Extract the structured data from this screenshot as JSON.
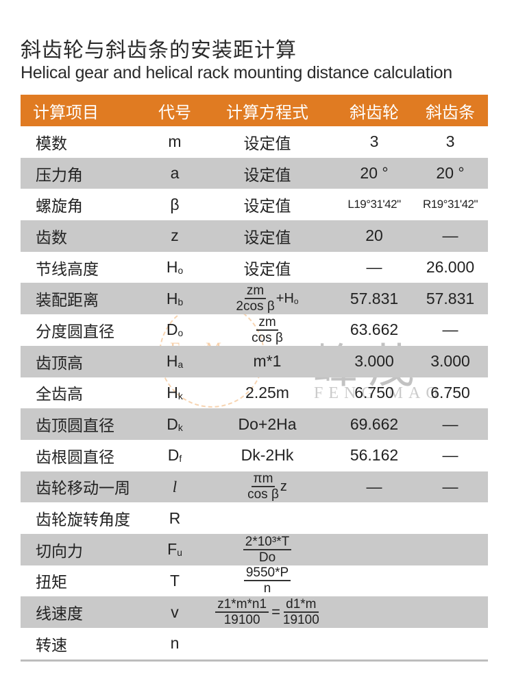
{
  "title": "斜齿轮与斜齿条的安装距计算",
  "subtitle": "Helical gear and helical rack mounting distance calculation",
  "colors": {
    "header_bg": "#e07b22",
    "row_gray": "#c9c9c9"
  },
  "watermark": {
    "cn": "峰茂",
    "en": "FENG MAO",
    "logo": "FengMao"
  },
  "header": [
    "计算项目",
    "代号",
    "计算方程式",
    "斜齿轮",
    "斜齿条"
  ],
  "rows": [
    {
      "name": "模数",
      "sym": "m",
      "sub": "",
      "f": {
        "text": "设定值"
      },
      "gear": "3",
      "rack": "3"
    },
    {
      "name": "压力角",
      "sym": "a",
      "sub": "",
      "f": {
        "text": "设定值"
      },
      "gear": "20 °",
      "rack": "20 °"
    },
    {
      "name": "螺旋角",
      "sym": "β",
      "sub": "",
      "f": {
        "text": "设定值"
      },
      "gear": "L19°31'42\"",
      "rack": "R19°31'42\""
    },
    {
      "name": "齿数",
      "sym": "z",
      "sub": "",
      "f": {
        "text": "设定值"
      },
      "gear": "20",
      "rack": "—"
    },
    {
      "name": "节线高度",
      "sym": "H",
      "sub": "o",
      "f": {
        "text": "设定值"
      },
      "gear": "—",
      "rack": "26.000"
    },
    {
      "name": "装配距离",
      "sym": "H",
      "sub": "b",
      "f": {
        "num": "zm",
        "den": "2cos β",
        "suffix": "+H",
        "suffix_sub": "o"
      },
      "gear": "57.831",
      "rack": "57.831"
    },
    {
      "name": "分度圆直径",
      "sym": "D",
      "sub": "o",
      "f": {
        "num": "zm",
        "den": "cos β"
      },
      "gear": "63.662",
      "rack": "—"
    },
    {
      "name": "齿顶高",
      "sym": "H",
      "sub": "a",
      "f": {
        "text": "m*1"
      },
      "gear": "3.000",
      "rack": "3.000"
    },
    {
      "name": "全齿高",
      "sym": "H",
      "sub": "k",
      "f": {
        "text": "2.25m"
      },
      "gear": "6.750",
      "rack": "6.750"
    },
    {
      "name": "齿顶圆直径",
      "sym": "D",
      "sub": "k",
      "f": {
        "text": "Do+2Ha"
      },
      "gear": "69.662",
      "rack": "—"
    },
    {
      "name": "齿根圆直径",
      "sym": "D",
      "sub": "f",
      "f": {
        "text": "Dk-2Hk"
      },
      "gear": "56.162",
      "rack": "—"
    },
    {
      "name": "齿轮移动一周",
      "sym": "l",
      "sub": "",
      "f": {
        "num": "πm",
        "den": "cos β",
        "suffix": "z"
      },
      "gear": "—",
      "rack": "—"
    },
    {
      "name": "齿轮旋转角度",
      "sym": "R",
      "sub": "",
      "f": {},
      "gear": "",
      "rack": ""
    },
    {
      "name": "切向力",
      "sym": "F",
      "sub": "u",
      "f": {
        "num": "2*10³*T",
        "den": "Do"
      },
      "gear": "",
      "rack": ""
    },
    {
      "name": "扭矩",
      "sym": "T",
      "sub": "",
      "f": {
        "num": "9550*P",
        "den": "n"
      },
      "gear": "",
      "rack": ""
    },
    {
      "name": "线速度",
      "sym": "v",
      "sub": "",
      "f": {
        "num": "z1*m*n1",
        "den": "19100",
        "eq": "=",
        "num2": "d1*m",
        "den2": "19100"
      },
      "gear": "",
      "rack": ""
    },
    {
      "name": "转速",
      "sym": "n",
      "sub": "",
      "f": {},
      "gear": "",
      "rack": ""
    }
  ]
}
